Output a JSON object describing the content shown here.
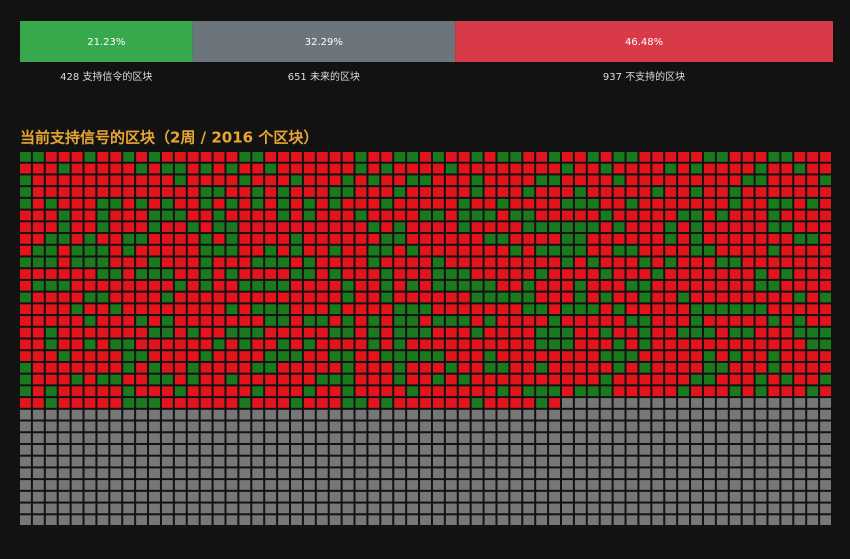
{
  "chart_data": [
    {
      "type": "stacked-bar",
      "series": [
        {
          "name": "支持信令的区块",
          "count": 428,
          "value": 21.23,
          "value_label": "21.23%",
          "color": "#37a84b"
        },
        {
          "name": "未来的区块",
          "count": 651,
          "value": 32.29,
          "value_label": "32.29%",
          "color": "#6c747c"
        },
        {
          "name": "不支持的区块",
          "count": 937,
          "value": 46.48,
          "value_label": "46.48%",
          "color": "#d93a48"
        }
      ]
    },
    {
      "type": "waffle",
      "title": "当前支持信号的区块（2周 / 2016 个区块）",
      "series": [
        {
          "count_ref": 0,
          "color": "#1c7a1e"
        },
        {
          "count_ref": 2,
          "color": "#e3141c"
        },
        {
          "count_ref": 1,
          "color": "#777777"
        }
      ]
    }
  ]
}
